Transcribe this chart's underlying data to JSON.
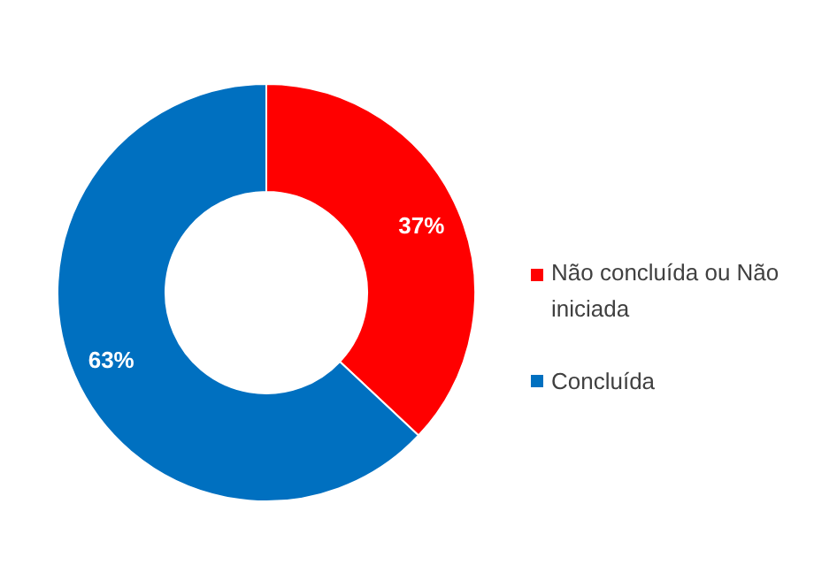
{
  "chart_data": {
    "type": "donut",
    "categories": [
      "Não concluída ou Não iniciada",
      "Concluída"
    ],
    "values": [
      37,
      63
    ],
    "colors": [
      "#ff0000",
      "#0070c0"
    ],
    "value_labels": [
      "37%",
      "63%"
    ],
    "legend": "right"
  }
}
